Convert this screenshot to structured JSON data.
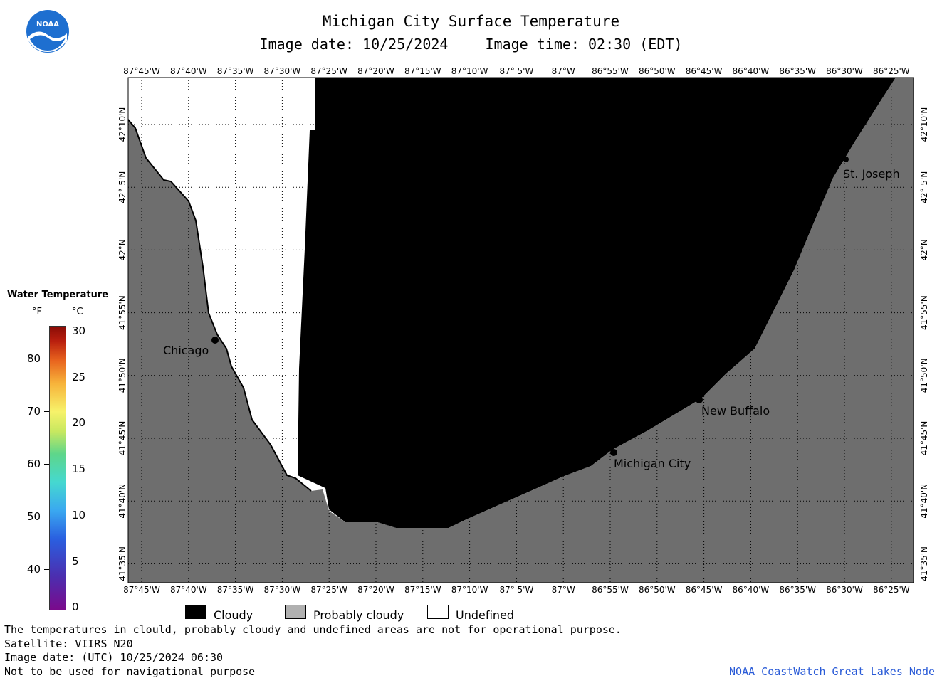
{
  "header": {
    "title": "Michigan City Surface Temperature",
    "image_date": "Image date: 10/25/2024",
    "image_time": "Image time: 02:30 (EDT)"
  },
  "logo": {
    "text": "NOAA",
    "icon": "noaa-logo-icon"
  },
  "map": {
    "lon_labels": [
      "87°45'W",
      "87°40'W",
      "87°35'W",
      "87°30'W",
      "87°25'W",
      "87°20'W",
      "87°15'W",
      "87°10'W",
      "87° 5'W",
      "87°W",
      "86°55'W",
      "86°50'W",
      "86°45'W",
      "86°40'W",
      "86°35'W",
      "86°30'W",
      "86°25'W"
    ],
    "lat_labels": [
      "42°10'N",
      "42° 5'N",
      "42°N",
      "41°55'N",
      "41°50'N",
      "41°45'N",
      "41°40'N",
      "41°35'N"
    ],
    "cities": [
      {
        "name": "Chicago"
      },
      {
        "name": "St. Joseph"
      },
      {
        "name": "New Buffalo"
      },
      {
        "name": "Michigan City"
      }
    ],
    "colors": {
      "cloudy": "#000000",
      "probably_cloudy": "#6e6e6e",
      "land": "#6e6e6e",
      "undefined": "#ffffff"
    }
  },
  "legend": {
    "title": "Water Temperature",
    "unit_f": "°F",
    "unit_c": "°C",
    "f_ticks": [
      "80",
      "70",
      "60",
      "50",
      "40"
    ],
    "c_ticks": [
      "30",
      "25",
      "20",
      "15",
      "10",
      "5",
      "0"
    ]
  },
  "key": {
    "cloudy": "Cloudy",
    "probably_cloudy": "Probably cloudy",
    "undefined": "Undefined"
  },
  "footer": {
    "note": "The temperatures in clould, probably cloudy and undefined areas are not for operational purpose.",
    "satellite": "Satellite: VIIRS_N20",
    "utc_date": "Image date: (UTC) 10/25/2024  06:30",
    "nav_warning": "Not to be used for navigational purpose",
    "credit": "NOAA CoastWatch Great Lakes Node"
  }
}
